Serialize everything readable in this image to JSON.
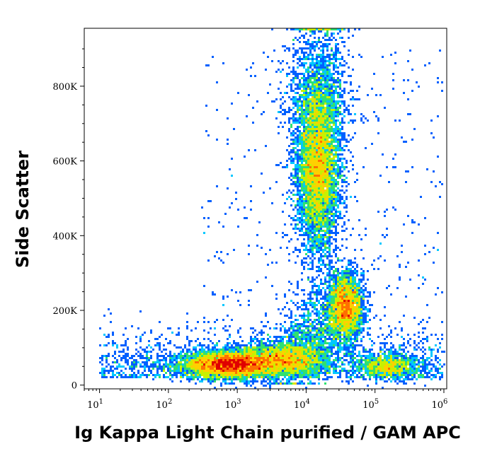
{
  "chart_data": {
    "type": "scatter",
    "subtype": "flow-cytometry density dot plot",
    "xlabel": "Ig Kappa Light Chain purified / GAM APC",
    "ylabel": "Side Scatter",
    "x_scale": "log",
    "xlim": [
      6,
      1100000
    ],
    "ylim": [
      -10000,
      955000
    ],
    "x_ticks": [
      {
        "value": 10,
        "base": "10",
        "exp": "1"
      },
      {
        "value": 100,
        "base": "10",
        "exp": "2"
      },
      {
        "value": 1000,
        "base": "10",
        "exp": "3"
      },
      {
        "value": 10000,
        "base": "10",
        "exp": "4"
      },
      {
        "value": 100000,
        "base": "10",
        "exp": "5"
      },
      {
        "value": 1000000,
        "base": "10",
        "exp": "6"
      }
    ],
    "y_ticks": [
      {
        "value": 0,
        "label": "0"
      },
      {
        "value": 200000,
        "label": "200K"
      },
      {
        "value": 400000,
        "label": "400K"
      },
      {
        "value": 600000,
        "label": "600K"
      },
      {
        "value": 800000,
        "label": "800K"
      }
    ],
    "color_scale": [
      "#0000c8",
      "#0060ff",
      "#00c8ff",
      "#30e070",
      "#c8f000",
      "#ffd000",
      "#ff7000",
      "#e00000"
    ],
    "populations": [
      {
        "x_center": 800,
        "x_log_sd": 0.35,
        "y_center": 55000,
        "y_sd": 18000,
        "count": 5200
      },
      {
        "x_center": 5000,
        "x_log_sd": 0.3,
        "y_center": 70000,
        "y_sd": 22000,
        "count": 2200
      },
      {
        "x_center": 15000,
        "x_log_sd": 0.16,
        "y_center": 580000,
        "y_sd": 110000,
        "count": 6000
      },
      {
        "x_center": 38000,
        "x_log_sd": 0.12,
        "y_center": 210000,
        "y_sd": 42000,
        "count": 2600
      },
      {
        "x_center": 150000,
        "x_log_sd": 0.22,
        "y_center": 50000,
        "y_sd": 18000,
        "count": 1000
      }
    ],
    "grid": false,
    "legend": "none"
  }
}
